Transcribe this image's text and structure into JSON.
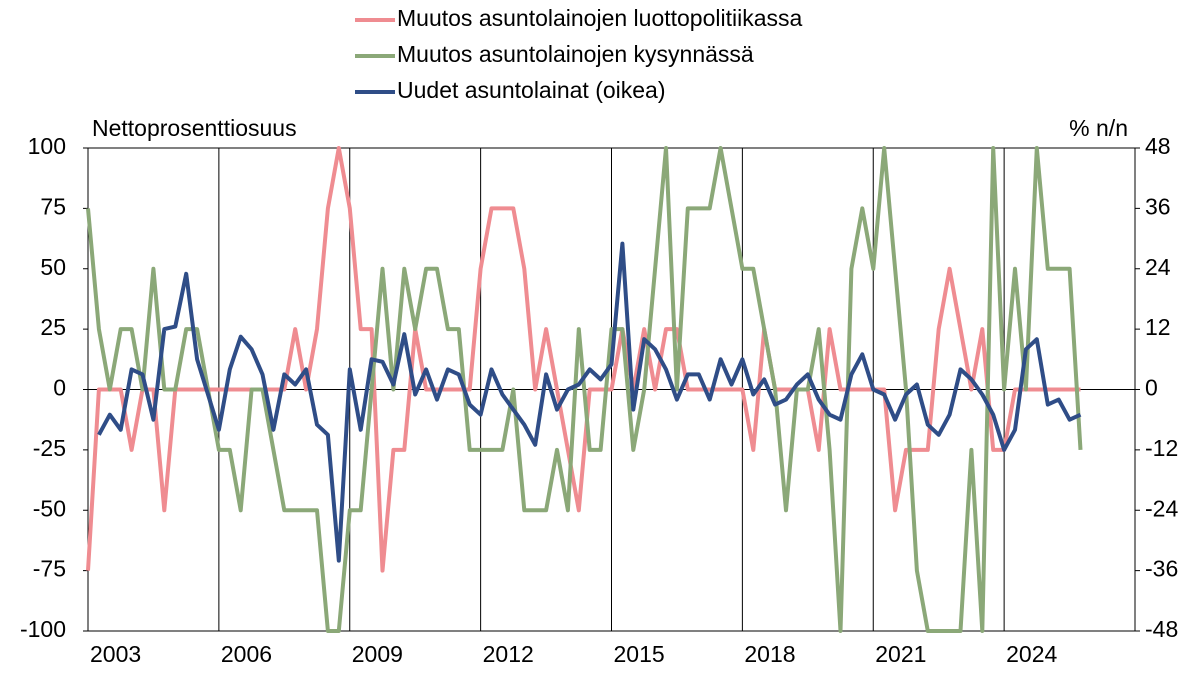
{
  "chart_data": {
    "type": "line",
    "ylabel": "Nettoprosenttiosuus",
    "y2label": "% n/n",
    "legend": "top",
    "x": [
      2003,
      2003.25,
      2003.5,
      2003.75,
      2004,
      2004.25,
      2004.5,
      2004.75,
      2005,
      2005.25,
      2005.5,
      2005.75,
      2006,
      2006.25,
      2006.5,
      2006.75,
      2007,
      2007.25,
      2007.5,
      2007.75,
      2008,
      2008.25,
      2008.5,
      2008.75,
      2009,
      2009.25,
      2009.5,
      2009.75,
      2010,
      2010.25,
      2010.5,
      2010.75,
      2011,
      2011.25,
      2011.5,
      2011.75,
      2012,
      2012.25,
      2012.5,
      2012.75,
      2013,
      2013.25,
      2013.5,
      2013.75,
      2014,
      2014.25,
      2014.5,
      2014.75,
      2015,
      2015.25,
      2015.5,
      2015.75,
      2016,
      2016.25,
      2016.5,
      2016.75,
      2017,
      2017.25,
      2017.5,
      2017.75,
      2018,
      2018.25,
      2018.5,
      2018.75,
      2019,
      2019.25,
      2019.5,
      2019.75,
      2020,
      2020.25,
      2020.5,
      2020.75,
      2021,
      2021.25,
      2021.5,
      2021.75,
      2022,
      2022.25,
      2022.5,
      2022.75,
      2023,
      2023.25,
      2023.5,
      2023.75,
      2024,
      2024.25,
      2024.5,
      2024.75,
      2025,
      2025.25,
      2025.5,
      2025.75
    ],
    "series": [
      {
        "name": "Muutos asuntolainojen luottopolitiikassa",
        "color": "#ef8c91",
        "values": [
          -75,
          0,
          0,
          0,
          -25,
          0,
          0,
          -50,
          0,
          0,
          0,
          0,
          0,
          0,
          0,
          0,
          0,
          0,
          0,
          25,
          0,
          25,
          75,
          100,
          75,
          25,
          25,
          -75,
          -25,
          -25,
          25,
          0,
          0,
          0,
          0,
          0,
          50,
          75,
          75,
          75,
          50,
          0,
          25,
          0,
          -25,
          -50,
          0,
          0,
          0,
          25,
          0,
          25,
          0,
          25,
          25,
          0,
          0,
          0,
          0,
          0,
          0,
          -25,
          25,
          0,
          0,
          0,
          0,
          -25,
          25,
          0,
          0,
          0,
          0,
          0,
          -50,
          -25,
          -25,
          -25,
          25,
          50,
          25,
          0,
          25,
          -25,
          -25,
          0,
          0,
          0,
          0,
          0,
          0,
          0
        ]
      },
      {
        "name": "Muutos asuntolainojen kysynnässä",
        "color": "#8ba878",
        "values": [
          75,
          25,
          0,
          25,
          25,
          0,
          50,
          0,
          0,
          25,
          25,
          0,
          -25,
          -25,
          -50,
          0,
          0,
          -25,
          -50,
          -50,
          -50,
          -50,
          -100,
          -100,
          -50,
          -50,
          0,
          50,
          0,
          50,
          25,
          50,
          50,
          25,
          25,
          -25,
          -25,
          -25,
          -25,
          0,
          -50,
          -50,
          -50,
          -25,
          -50,
          25,
          -25,
          -25,
          25,
          25,
          -25,
          0,
          50,
          100,
          0,
          75,
          75,
          75,
          100,
          75,
          50,
          50,
          25,
          0,
          -50,
          0,
          0,
          25,
          -25,
          -100,
          50,
          75,
          50,
          100,
          50,
          0,
          -75,
          -100,
          -100,
          -100,
          -100,
          -25,
          -100,
          100,
          0,
          50,
          0,
          100,
          50,
          50,
          50,
          -25
        ]
      },
      {
        "name": "Uudet asuntolainat (oikea)",
        "color": "#2f4d87",
        "axis": "y2",
        "values": [
          null,
          -9,
          -5,
          -8,
          4,
          3,
          -6,
          12,
          12.5,
          23,
          6,
          -1,
          -8,
          4,
          10.5,
          8,
          3,
          -8,
          3,
          1,
          4,
          -7,
          -9,
          -34,
          4,
          -8,
          6,
          5.5,
          1,
          11,
          -1,
          4,
          -2,
          4,
          3,
          -3,
          -5,
          4,
          -1,
          -4,
          -7,
          -11,
          3,
          -4,
          0,
          1,
          4,
          2,
          5,
          29,
          -4,
          10,
          8,
          4,
          -2,
          3,
          3,
          -2,
          6,
          1,
          6,
          -1,
          2,
          -3,
          -2,
          1,
          3,
          -2,
          -5,
          -6,
          3,
          7,
          0,
          -1,
          -6,
          -1,
          1,
          -7,
          -9,
          -5,
          4,
          2,
          -1,
          -5,
          -12,
          -8,
          8,
          10,
          -3,
          -2,
          -6,
          -5
        ]
      }
    ],
    "xlim": [
      2003,
      2027
    ],
    "xticks": [
      2003,
      2006,
      2009,
      2012,
      2015,
      2018,
      2021,
      2024
    ],
    "ylim": [
      -100,
      100
    ],
    "yticks": [
      -100,
      -75,
      -50,
      -25,
      0,
      25,
      50,
      75,
      100
    ],
    "y2lim": [
      -48,
      48
    ],
    "y2ticks": [
      -48,
      -36,
      -24,
      -12,
      0,
      12,
      24,
      36,
      48
    ],
    "grid": true
  }
}
